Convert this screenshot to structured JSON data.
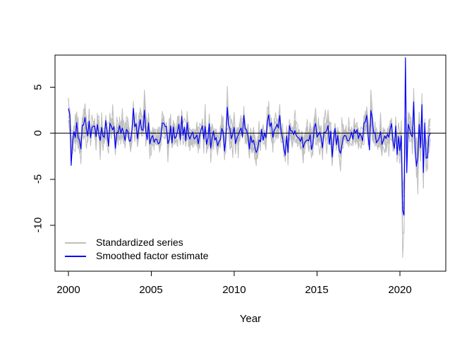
{
  "figure": {
    "background": "#ffffff"
  },
  "chart_data": {
    "type": "line",
    "title": "",
    "xlabel": "Year",
    "ylabel": "",
    "x_tick_labels": [
      "2000",
      "2005",
      "2010",
      "2015",
      "2020"
    ],
    "x_tick_values": [
      2000,
      2005,
      2010,
      2015,
      2020
    ],
    "y_tick_labels": [
      "5",
      "0",
      "-5",
      "-10"
    ],
    "y_tick_values": [
      5,
      0,
      -5,
      -10
    ],
    "xlim": [
      1999.19,
      2022.77
    ],
    "ylim": [
      -14.99,
      8.48
    ],
    "grid": false,
    "zero_line": 0,
    "start_year": 2000,
    "end_year": 2021.833,
    "frequency": "monthly",
    "n_points": 263,
    "seed": 7,
    "colors": {
      "gray_series": "#bebebe",
      "factor": "#0000ff",
      "axis": "#000000"
    },
    "gray_loadings": [
      1.3,
      1.15,
      1.05,
      0.95,
      0.9,
      0.8,
      0.75,
      0.65,
      0.6
    ],
    "gray_idio_sd": 0.75,
    "factor_ar": 0.25,
    "factor_sd": 0.85,
    "blue_obs_sd": 0.3,
    "high_vol_window": {
      "start": 2020.45,
      "end": 2021.9,
      "scale": 2.0,
      "gray_extra": 1.3
    },
    "factor_overrides": [
      {
        "ym": "2000-02",
        "f": 1.4,
        "blue": 2.0
      },
      {
        "ym": "2000-03",
        "f": -1.2,
        "blue": -3.5
      },
      {
        "ym": "2004-08",
        "f": 2.5,
        "blue": 2.5
      },
      {
        "ym": "2009-08",
        "f": 2.9,
        "blue": 2.8
      },
      {
        "ym": "2020-03",
        "f": -8.6,
        "blue": -8.4
      },
      {
        "ym": "2020-04",
        "f": -7.8,
        "blue": -8.9
      },
      {
        "ym": "2020-05",
        "f": 0.5,
        "blue": 8.2
      },
      {
        "ym": "2020-06",
        "f": -1.5,
        "blue": -4.3
      },
      {
        "ym": "2020-11",
        "f": 2.4,
        "blue": 3.4
      },
      {
        "ym": "2021-05",
        "f": 2.2,
        "blue": 3.1
      }
    ],
    "gray_overrides": [
      {
        "ym": "2004-08",
        "series": 0,
        "value": 4.7
      },
      {
        "ym": "2009-08",
        "series": 0,
        "value": 5.1
      },
      {
        "ym": "2020-03",
        "series": 0,
        "value": -13.5
      },
      {
        "ym": "2020-04",
        "series": 1,
        "value": -10.8
      }
    ],
    "notable_points": [
      {
        "year": 2000.17,
        "series": "Smoothed factor estimate",
        "value": -3.5
      },
      {
        "year": 2004.58,
        "series": "Standardized series max",
        "value": 4.7
      },
      {
        "year": 2009.58,
        "series": "Standardized series max",
        "value": 5.1
      },
      {
        "year": 2020.17,
        "series": "Standardized series min",
        "value": -13.5
      },
      {
        "year": 2020.25,
        "series": "Smoothed factor estimate min",
        "value": -8.9
      },
      {
        "year": 2020.33,
        "series": "Smoothed factor estimate max",
        "value": 8.2
      }
    ],
    "series_meta": [
      {
        "name": "Standardized series",
        "role": "observed standardized series, multiple overlaid",
        "color": "#bebebe",
        "count": 9
      },
      {
        "name": "Smoothed factor estimate",
        "role": "common factor estimate",
        "color": "#0000ff",
        "count": 1
      }
    ],
    "legend": [
      {
        "label": "Standardized series",
        "color": "#bebebe"
      },
      {
        "label": "Smoothed factor estimate",
        "color": "#0000ff"
      }
    ],
    "legend_position": "bottom-left-inside"
  }
}
